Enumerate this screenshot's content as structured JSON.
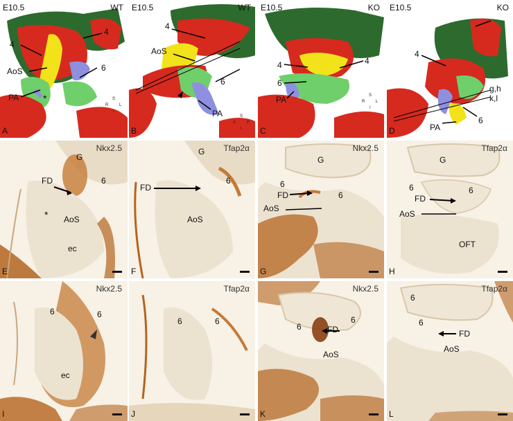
{
  "panels": {
    "A": {
      "letter": "A",
      "stage": "E10.5",
      "genotype": "WT",
      "labels": {
        "n4a": "4",
        "n4b": "4",
        "aos": "AoS",
        "n6": "6",
        "pa": "PA",
        "ast": "*"
      },
      "axes": {
        "s": "S",
        "r": "R",
        "l": "L",
        "i": "I"
      }
    },
    "B": {
      "letter": "B",
      "stage": "E10.5",
      "genotype": "WT",
      "labels": {
        "n4": "4",
        "aos": "AoS",
        "n6": "6",
        "pa": "PA"
      },
      "axes": {
        "s": "S",
        "a": "A",
        "p": "P",
        "i": "I"
      }
    },
    "C": {
      "letter": "C",
      "stage": "E10.5",
      "genotype": "KO",
      "labels": {
        "n4a": "4",
        "n4b": "4",
        "n6": "6",
        "pa": "PA"
      },
      "axes": {
        "s": "S",
        "r": "R",
        "l": "L",
        "i": "I"
      }
    },
    "D": {
      "letter": "D",
      "stage": "E10.5",
      "genotype": "KO",
      "labels": {
        "n4": "4",
        "gh": "g,h",
        "kl": "k,l",
        "n6": "6",
        "pa": "PA"
      },
      "axes": {
        "s": "S",
        "a": "A",
        "p": "P",
        "i": "I"
      }
    },
    "E": {
      "letter": "E",
      "marker": "Nkx2.5",
      "labels": {
        "g": "G",
        "fd": "FD",
        "n6": "6",
        "ast": "*",
        "aos": "AoS",
        "ec": "ec"
      }
    },
    "F": {
      "letter": "F",
      "marker": "Tfap2α",
      "labels": {
        "g": "G",
        "fd": "FD",
        "n6": "6",
        "aos": "AoS"
      }
    },
    "G": {
      "letter": "G",
      "marker": "Nkx2.5",
      "labels": {
        "g": "G",
        "n6a": "6",
        "fd": "FD",
        "n6b": "6",
        "aos": "AoS"
      }
    },
    "H": {
      "letter": "H",
      "marker": "Tfap2α",
      "labels": {
        "g": "G",
        "n6a": "6",
        "n6b": "6",
        "fd": "FD",
        "aos": "AoS",
        "oft": "OFT"
      }
    },
    "I": {
      "letter": "I",
      "marker": "Nkx2.5",
      "labels": {
        "n6a": "6",
        "n6b": "6",
        "ec": "ec"
      }
    },
    "J": {
      "letter": "J",
      "marker": "Tfap2α",
      "labels": {
        "n6a": "6",
        "n6b": "6"
      }
    },
    "K": {
      "letter": "K",
      "marker": "Nkx2.5",
      "labels": {
        "n6a": "6",
        "fd": "FD",
        "n6b": "6",
        "aos": "AoS"
      }
    },
    "L": {
      "letter": "L",
      "marker": "Tfap2α",
      "labels": {
        "n6a": "6",
        "n6b": "6",
        "fd": "FD",
        "aos": "AoS"
      }
    }
  },
  "colors": {
    "red": "#d62a1f",
    "green": "#2d6a2e",
    "lightgreen": "#6fcf6a",
    "yellow": "#f2e21a",
    "lavender": "#8f8fe0",
    "tissue": "#e9dcc7",
    "stain": "#b4641e",
    "pale": "#f7f1e6"
  }
}
